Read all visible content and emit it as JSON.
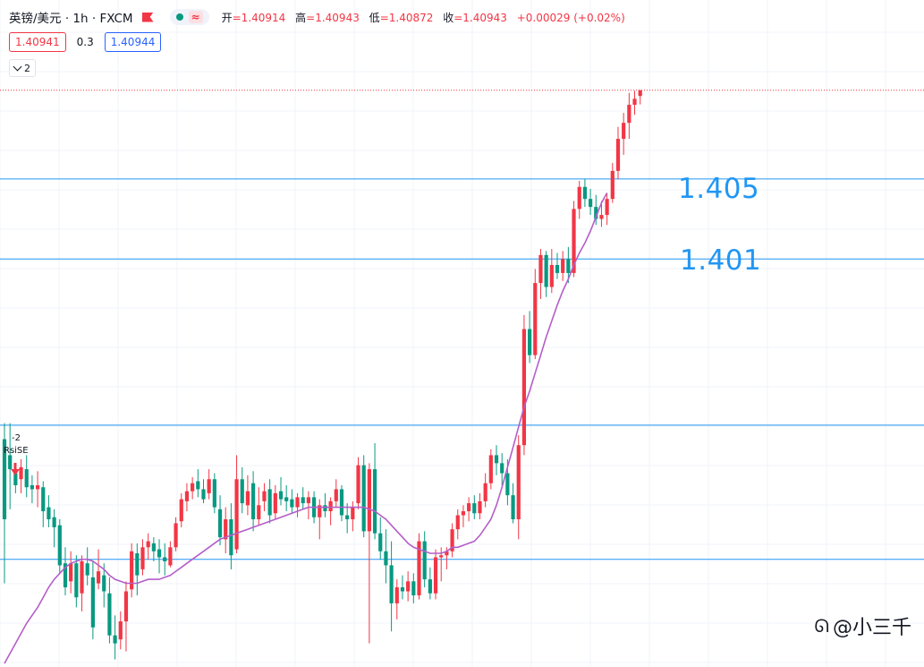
{
  "header": {
    "symbol": "英镑/美元 · 1h · FXCM",
    "status_icon": "market-open-dot",
    "ohlc": [
      {
        "label": "开",
        "value": "=1.40914"
      },
      {
        "label": "高",
        "value": "=1.40943"
      },
      {
        "label": "低",
        "value": "=1.40872"
      },
      {
        "label": "收",
        "value": "=1.40943"
      },
      {
        "label": "",
        "value": "+0.00029 (+0.02%)"
      }
    ],
    "sell_price": "1.40941",
    "spread": "0.3",
    "buy_price": "1.40944",
    "indicators_count": "2"
  },
  "annotations": {
    "level_1405": "1.405",
    "level_1401": "1.401",
    "signal_count": "-2",
    "signal_name": "RsiSE"
  },
  "watermark": "@小三千",
  "colors": {
    "up": "#f23645",
    "down": "#089981",
    "ma": "#b45ec8",
    "hline": "#2196f3",
    "grid": "#f0f3fa"
  },
  "chart_data": {
    "type": "candlestick",
    "symbol": "GBP/USD",
    "timeframe": "1h",
    "y_range": [
      1.3808,
      1.41
    ],
    "horizontal_lines": [
      1.405,
      1.401,
      1.3927,
      1.386
    ],
    "last_price": 1.40943,
    "ohlc": [
      [
        1.392,
        1.3928,
        1.3848,
        1.388
      ],
      [
        1.3912,
        1.3928,
        1.3885,
        1.3905
      ],
      [
        1.3903,
        1.3908,
        1.3893,
        1.3897
      ],
      [
        1.39,
        1.391,
        1.3893,
        1.3906
      ],
      [
        1.3905,
        1.3912,
        1.3891,
        1.3896
      ],
      [
        1.3897,
        1.3902,
        1.3888,
        1.3895
      ],
      [
        1.3895,
        1.3904,
        1.3886,
        1.3897
      ],
      [
        1.3896,
        1.3899,
        1.3876,
        1.3884
      ],
      [
        1.3886,
        1.3892,
        1.3876,
        1.388
      ],
      [
        1.3881,
        1.3885,
        1.3866,
        1.3876
      ],
      [
        1.3877,
        1.388,
        1.3853,
        1.3857
      ],
      [
        1.3858,
        1.3866,
        1.3842,
        1.3846
      ],
      [
        1.3849,
        1.3864,
        1.3843,
        1.3858
      ],
      [
        1.3858,
        1.3862,
        1.3836,
        1.3841
      ],
      [
        1.3843,
        1.3862,
        1.3834,
        1.3859
      ],
      [
        1.3858,
        1.3866,
        1.3847,
        1.3852
      ],
      [
        1.3851,
        1.3859,
        1.382,
        1.3826
      ],
      [
        1.3848,
        1.3865,
        1.3845,
        1.3854
      ],
      [
        1.3852,
        1.3858,
        1.3836,
        1.3844
      ],
      [
        1.3843,
        1.3851,
        1.3818,
        1.3822
      ],
      [
        1.3822,
        1.3832,
        1.381,
        1.3818
      ],
      [
        1.382,
        1.3834,
        1.3815,
        1.3829
      ],
      [
        1.3829,
        1.3849,
        1.3814,
        1.3844
      ],
      [
        1.3845,
        1.3868,
        1.3841,
        1.3864
      ],
      [
        1.3863,
        1.3868,
        1.3842,
        1.3852
      ],
      [
        1.3855,
        1.387,
        1.3852,
        1.3866
      ],
      [
        1.3866,
        1.3873,
        1.386,
        1.3869
      ],
      [
        1.3868,
        1.3871,
        1.3859,
        1.3864
      ],
      [
        1.3865,
        1.387,
        1.3853,
        1.3861
      ],
      [
        1.3861,
        1.3868,
        1.3852,
        1.3859
      ],
      [
        1.3857,
        1.3869,
        1.3856,
        1.3866
      ],
      [
        1.3866,
        1.3881,
        1.3864,
        1.3878
      ],
      [
        1.3879,
        1.3893,
        1.3876,
        1.389
      ],
      [
        1.3889,
        1.3898,
        1.3884,
        1.3894
      ],
      [
        1.3894,
        1.3901,
        1.389,
        1.3898
      ],
      [
        1.3899,
        1.3905,
        1.3891,
        1.3895
      ],
      [
        1.3895,
        1.39,
        1.3888,
        1.389
      ],
      [
        1.3893,
        1.3905,
        1.389,
        1.39
      ],
      [
        1.39,
        1.3903,
        1.3883,
        1.3886
      ],
      [
        1.3885,
        1.3892,
        1.3867,
        1.3871
      ],
      [
        1.387,
        1.3886,
        1.3863,
        1.388
      ],
      [
        1.388,
        1.3888,
        1.3855,
        1.3862
      ],
      [
        1.3865,
        1.3912,
        1.3863,
        1.39
      ],
      [
        1.39,
        1.3906,
        1.3883,
        1.3888
      ],
      [
        1.3887,
        1.3902,
        1.3882,
        1.3894
      ],
      [
        1.3898,
        1.3904,
        1.3874,
        1.388
      ],
      [
        1.388,
        1.3896,
        1.3877,
        1.3887
      ],
      [
        1.3889,
        1.3898,
        1.3884,
        1.3894
      ],
      [
        1.3895,
        1.39,
        1.3878,
        1.3882
      ],
      [
        1.3883,
        1.3897,
        1.388,
        1.3893
      ],
      [
        1.3894,
        1.3901,
        1.3887,
        1.389
      ],
      [
        1.3891,
        1.3897,
        1.3884,
        1.3889
      ],
      [
        1.389,
        1.3895,
        1.3883,
        1.3886
      ],
      [
        1.3886,
        1.3893,
        1.3881,
        1.3891
      ],
      [
        1.3891,
        1.3896,
        1.3885,
        1.3888
      ],
      [
        1.3888,
        1.3894,
        1.388,
        1.3891
      ],
      [
        1.3891,
        1.3894,
        1.3878,
        1.3881
      ],
      [
        1.3881,
        1.389,
        1.387,
        1.3887
      ],
      [
        1.3887,
        1.3893,
        1.3881,
        1.3884
      ],
      [
        1.3884,
        1.3891,
        1.3877,
        1.3889
      ],
      [
        1.3889,
        1.39,
        1.3886,
        1.3895
      ],
      [
        1.3895,
        1.3897,
        1.3879,
        1.3882
      ],
      [
        1.3882,
        1.3888,
        1.3873,
        1.388
      ],
      [
        1.388,
        1.3889,
        1.3874,
        1.3886
      ],
      [
        1.3888,
        1.3911,
        1.3885,
        1.3907
      ],
      [
        1.3907,
        1.3912,
        1.3871,
        1.3874
      ],
      [
        1.3874,
        1.3908,
        1.3818,
        1.3905
      ],
      [
        1.3905,
        1.3918,
        1.387,
        1.3873
      ],
      [
        1.3873,
        1.3881,
        1.386,
        1.3864
      ],
      [
        1.3864,
        1.3875,
        1.3848,
        1.3857
      ],
      [
        1.3857,
        1.3869,
        1.3824,
        1.3838
      ],
      [
        1.3838,
        1.385,
        1.383,
        1.3846
      ],
      [
        1.3846,
        1.3852,
        1.384,
        1.3844
      ],
      [
        1.3844,
        1.3854,
        1.3839,
        1.3849
      ],
      [
        1.3849,
        1.3853,
        1.3838,
        1.3842
      ],
      [
        1.3842,
        1.3873,
        1.384,
        1.3869
      ],
      [
        1.3869,
        1.3874,
        1.3846,
        1.385
      ],
      [
        1.385,
        1.3856,
        1.384,
        1.3843
      ],
      [
        1.3843,
        1.3865,
        1.384,
        1.3861
      ],
      [
        1.3861,
        1.3866,
        1.3849,
        1.3862
      ],
      [
        1.3862,
        1.3866,
        1.3855,
        1.3864
      ],
      [
        1.3864,
        1.3878,
        1.3861,
        1.3875
      ],
      [
        1.3875,
        1.3885,
        1.387,
        1.3882
      ],
      [
        1.3882,
        1.3887,
        1.3876,
        1.3884
      ],
      [
        1.3884,
        1.3891,
        1.3879,
        1.3888
      ],
      [
        1.3888,
        1.3892,
        1.388,
        1.3883
      ],
      [
        1.3883,
        1.3893,
        1.388,
        1.3889
      ],
      [
        1.3889,
        1.3903,
        1.3886,
        1.3898
      ],
      [
        1.3898,
        1.3915,
        1.3895,
        1.3912
      ],
      [
        1.3912,
        1.3917,
        1.3902,
        1.3908
      ],
      [
        1.3908,
        1.3913,
        1.3897,
        1.3903
      ],
      [
        1.3903,
        1.391,
        1.3887,
        1.3892
      ],
      [
        1.3892,
        1.3898,
        1.3878,
        1.388
      ],
      [
        1.388,
        1.3922,
        1.387,
        1.3917
      ],
      [
        1.3917,
        1.3982,
        1.3912,
        1.3975
      ],
      [
        1.3975,
        1.3984,
        1.3958,
        1.3962
      ],
      [
        1.3962,
        1.4005,
        1.396,
        1.3998
      ],
      [
        1.3998,
        1.4015,
        1.399,
        1.4012
      ],
      [
        1.4012,
        1.4014,
        1.3991,
        1.3996
      ],
      [
        1.3996,
        1.4015,
        1.3993,
        1.4007
      ],
      [
        1.4007,
        1.4013,
        1.4,
        1.4003
      ],
      [
        1.4003,
        1.4014,
        1.3999,
        1.401
      ],
      [
        1.401,
        1.4016,
        1.3998,
        1.4003
      ],
      [
        1.4003,
        1.4039,
        1.4001,
        1.4035
      ],
      [
        1.4035,
        1.4049,
        1.403,
        1.4046
      ],
      [
        1.4046,
        1.405,
        1.4036,
        1.404
      ],
      [
        1.404,
        1.4045,
        1.4032,
        1.4036
      ],
      [
        1.4036,
        1.4042,
        1.4027,
        1.403
      ],
      [
        1.403,
        1.4039,
        1.4026,
        1.4032
      ],
      [
        1.4032,
        1.4043,
        1.4027,
        1.404
      ],
      [
        1.404,
        1.4058,
        1.4038,
        1.4054
      ],
      [
        1.4054,
        1.4076,
        1.405,
        1.407
      ],
      [
        1.407,
        1.4083,
        1.4062,
        1.4078
      ],
      [
        1.4078,
        1.4093,
        1.407,
        1.4087
      ],
      [
        1.4087,
        1.4094,
        1.4082,
        1.409
      ],
      [
        1.40914,
        1.40943,
        1.40872,
        1.40943
      ]
    ],
    "ma": [
      1.3808,
      1.3813,
      1.3818,
      1.3823,
      1.3828,
      1.3832,
      1.3836,
      1.3841,
      1.3846,
      1.385,
      1.3853,
      1.3856,
      1.3858,
      1.3859,
      1.386,
      1.386,
      1.3859,
      1.3857,
      1.3855,
      1.3852,
      1.385,
      1.3849,
      1.3848,
      1.3848,
      1.3848,
      1.3849,
      1.385,
      1.385,
      1.385,
      1.3851,
      1.3852,
      1.3854,
      1.3856,
      1.3858,
      1.386,
      1.3862,
      1.3864,
      1.3866,
      1.3868,
      1.387,
      1.3871,
      1.3872,
      1.3873,
      1.3874,
      1.3875,
      1.3876,
      1.3877,
      1.3878,
      1.3879,
      1.388,
      1.3881,
      1.3882,
      1.3883,
      1.3884,
      1.3885,
      1.3886,
      1.3886,
      1.3886,
      1.3886,
      1.3886,
      1.3886,
      1.3886,
      1.3886,
      1.3886,
      1.3886,
      1.3886,
      1.3885,
      1.3884,
      1.3882,
      1.388,
      1.3877,
      1.3874,
      1.3871,
      1.3868,
      1.3866,
      1.3865,
      1.3864,
      1.3863,
      1.3863,
      1.3863,
      1.3864,
      1.3866,
      1.3866,
      1.3867,
      1.3868,
      1.3869,
      1.3872,
      1.3876,
      1.388,
      1.3887,
      1.3896,
      1.3906,
      1.3916,
      1.3926,
      1.3936,
      1.3944,
      1.3953,
      1.3962,
      1.3971,
      1.3979,
      1.3987,
      1.3994,
      1.4,
      1.4007,
      1.4013,
      1.4018,
      1.4024,
      1.4031,
      1.4038,
      1.4043
    ]
  }
}
